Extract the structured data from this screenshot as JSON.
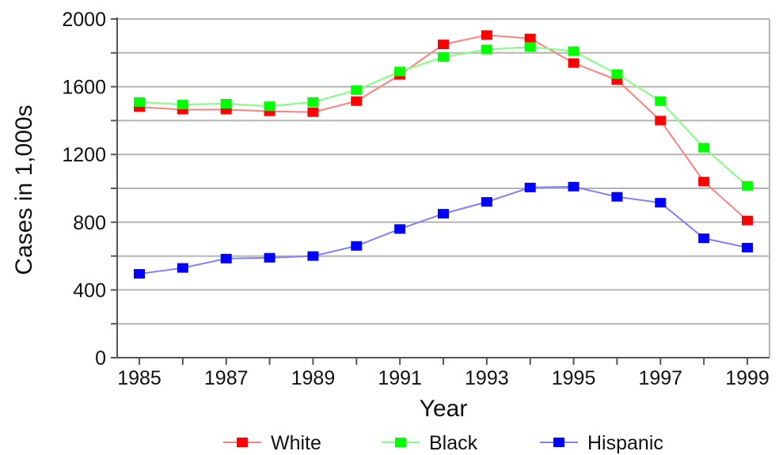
{
  "chart_data": {
    "type": "line",
    "title": "",
    "xlabel": "Year",
    "ylabel": "Cases in 1,000s",
    "x": [
      1985,
      1986,
      1987,
      1988,
      1989,
      1990,
      1991,
      1992,
      1993,
      1994,
      1995,
      1996,
      1997,
      1998,
      1999
    ],
    "x_tick_labels": [
      "1985",
      "1987",
      "1989",
      "1991",
      "1993",
      "1995",
      "1997",
      "1999"
    ],
    "y_tick_labels": [
      "0",
      "400",
      "800",
      "1200",
      "1600",
      "2000"
    ],
    "ylim": [
      0,
      2000
    ],
    "grid": true,
    "legend_position": "bottom",
    "series": [
      {
        "name": "White",
        "color": "#ff0000",
        "line_color": "#ff8080",
        "values": [
          1480,
          1465,
          1465,
          1455,
          1450,
          1515,
          1670,
          1850,
          1905,
          1885,
          1740,
          1640,
          1400,
          1040,
          810
        ]
      },
      {
        "name": "Black",
        "color": "#00ff00",
        "line_color": "#80ff80",
        "values": [
          1510,
          1495,
          1500,
          1485,
          1510,
          1580,
          1690,
          1775,
          1820,
          1835,
          1810,
          1675,
          1515,
          1240,
          1015
        ]
      },
      {
        "name": "Hispanic",
        "color": "#0000ff",
        "line_color": "#8080ff",
        "values": [
          495,
          530,
          585,
          590,
          600,
          660,
          760,
          850,
          920,
          1005,
          1010,
          950,
          915,
          705,
          650
        ]
      }
    ]
  }
}
